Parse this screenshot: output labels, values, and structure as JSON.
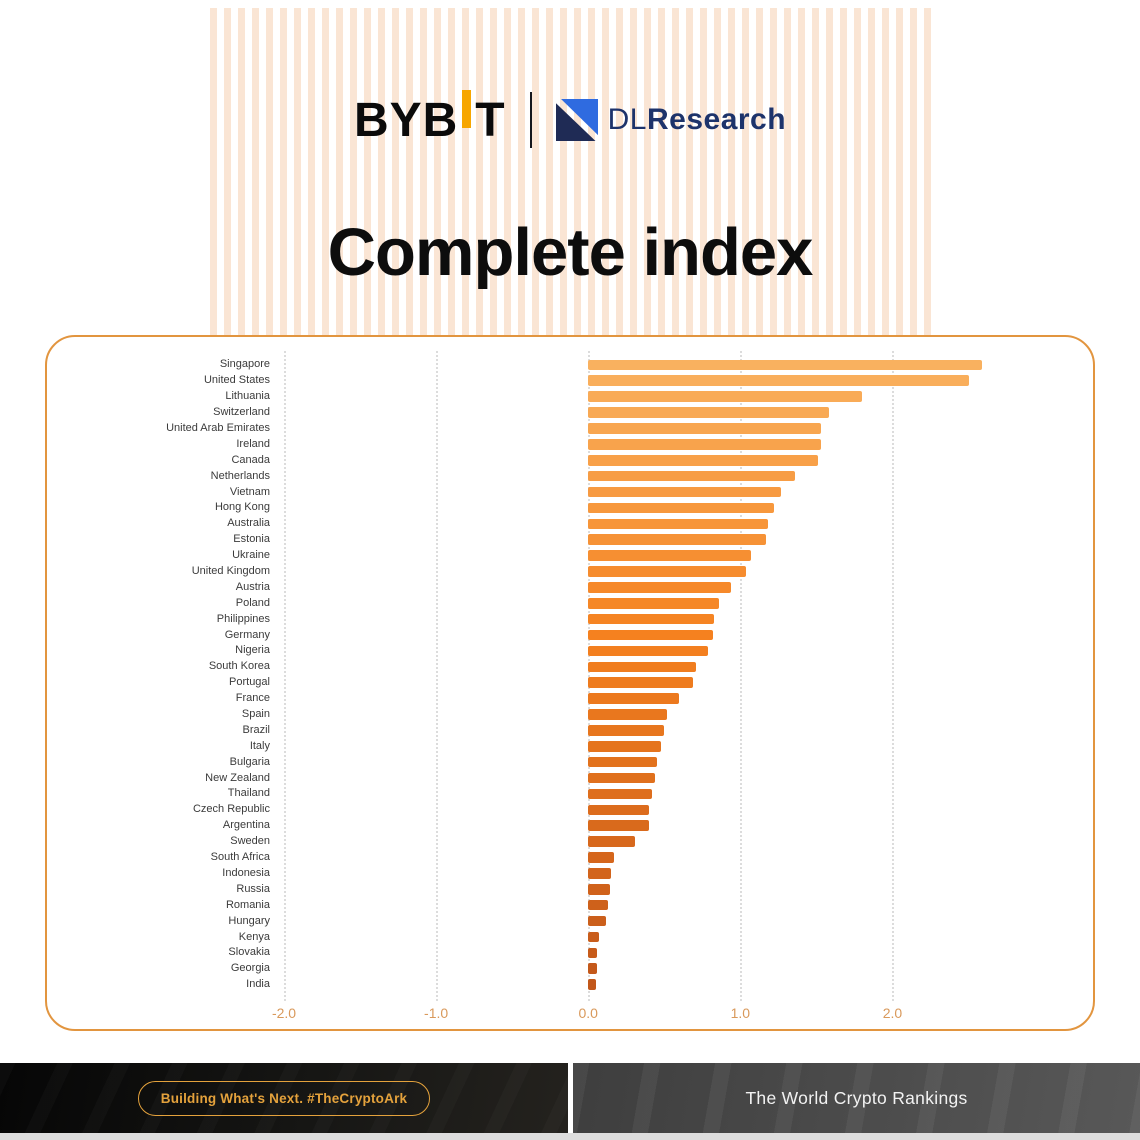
{
  "header": {
    "bybit_logo": {
      "part1": "BYB",
      "part2": "T",
      "accent_color": "#F7A600"
    },
    "dl_logo": {
      "prefix": "DL",
      "suffix": "Research",
      "navy": "#1f2b55",
      "blue": "#2f6be0"
    }
  },
  "title": "Complete index",
  "chart_data": {
    "type": "bar",
    "orientation": "horizontal",
    "title": "Complete index",
    "xlabel": "",
    "ylabel": "",
    "xlim": [
      -2.0,
      3.2
    ],
    "xticks": [
      -2.0,
      -1.0,
      0.0,
      1.0,
      2.0
    ],
    "xtick_labels": [
      "-2.0",
      "-1.0",
      "0.0",
      "1.0",
      "2.0"
    ],
    "grid": "dotted-vertical",
    "axis_label_color": "#d9995b",
    "bar_color_stops": [
      {
        "index": 0,
        "color": "#F9B15F"
      },
      {
        "index": 17,
        "color": "#F5811F"
      },
      {
        "index": 39,
        "color": "#C2571A"
      }
    ],
    "categories": [
      "Singapore",
      "United States",
      "Lithuania",
      "Switzerland",
      "United Arab Emirates",
      "Ireland",
      "Canada",
      "Netherlands",
      "Vietnam",
      "Hong Kong",
      "Australia",
      "Estonia",
      "Ukraine",
      "United Kingdom",
      "Austria",
      "Poland",
      "Philippines",
      "Germany",
      "Nigeria",
      "South Korea",
      "Portugal",
      "France",
      "Spain",
      "Brazil",
      "Italy",
      "Bulgaria",
      "New Zealand",
      "Thailand",
      "Czech Republic",
      "Argentina",
      "Sweden",
      "South Africa",
      "Indonesia",
      "Russia",
      "Romania",
      "Hungary",
      "Kenya",
      "Slovakia",
      "Georgia",
      "India"
    ],
    "values": [
      2.59,
      2.5,
      1.8,
      1.58,
      1.53,
      1.53,
      1.51,
      1.36,
      1.27,
      1.22,
      1.18,
      1.17,
      1.07,
      1.04,
      0.94,
      0.86,
      0.83,
      0.82,
      0.79,
      0.71,
      0.69,
      0.6,
      0.52,
      0.5,
      0.48,
      0.45,
      0.44,
      0.42,
      0.4,
      0.4,
      0.31,
      0.17,
      0.15,
      0.14,
      0.13,
      0.12,
      0.07,
      0.06,
      0.055,
      0.05
    ]
  },
  "footer": {
    "left_badge": "Building What's Next. #TheCryptoArk",
    "right_text": "The World Crypto Rankings",
    "badge_color": "#e4a23c"
  },
  "colors": {
    "card_border": "#e2953f",
    "stripe": "#fae5d4"
  }
}
